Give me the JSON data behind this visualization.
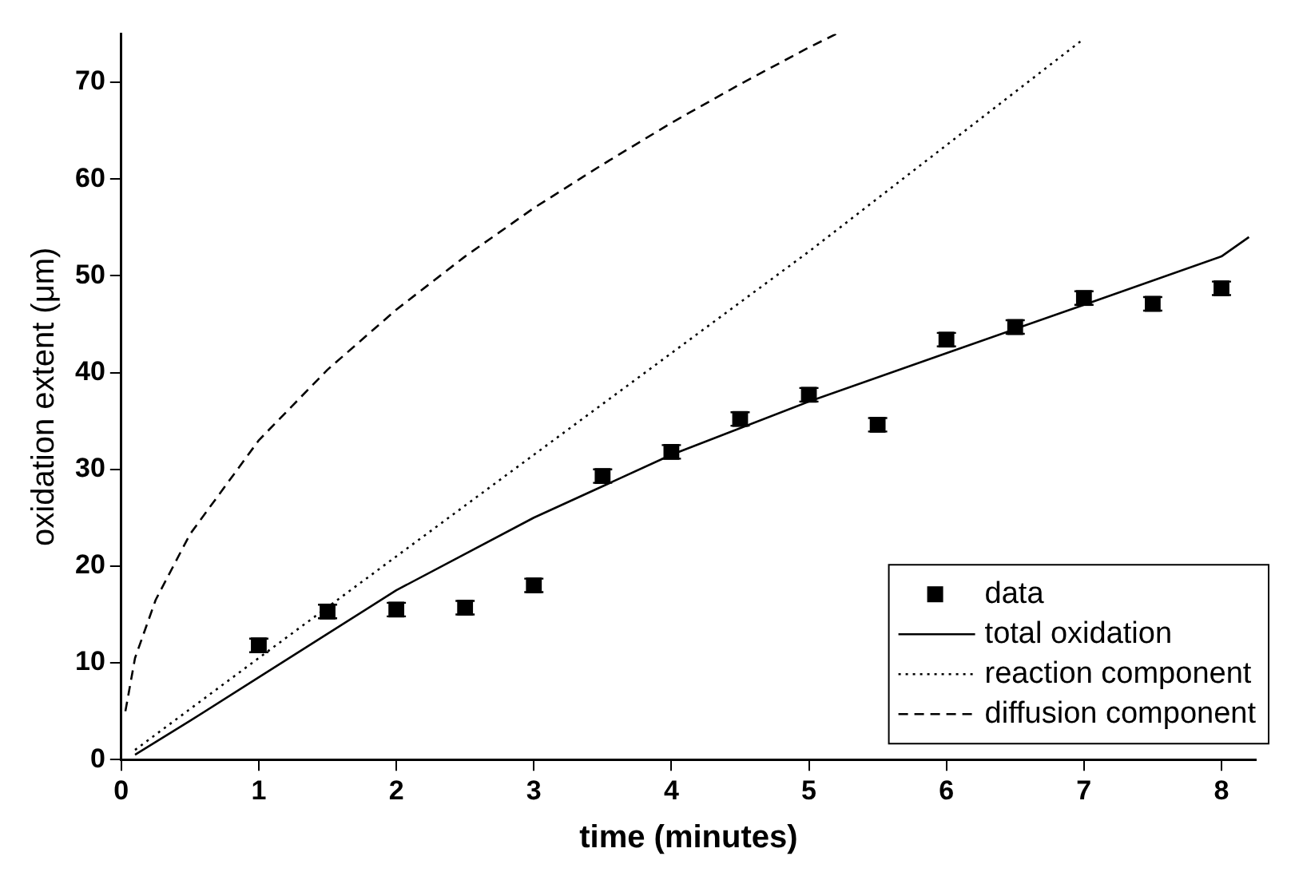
{
  "chart_data": {
    "type": "scatter",
    "xlabel": "time (minutes)",
    "ylabel": "oxidation extent (μm)",
    "xlim": [
      0,
      8.25
    ],
    "ylim": [
      0,
      75
    ],
    "xticks": [
      0,
      1,
      2,
      3,
      4,
      5,
      6,
      7,
      8
    ],
    "yticks": [
      0,
      10,
      20,
      30,
      40,
      50,
      60,
      70
    ],
    "grid": false,
    "legend": "bottom right",
    "series": [
      {
        "name": "data",
        "type": "scatter",
        "marker": "square",
        "color": "#000000",
        "x": [
          1,
          1.5,
          2,
          2.5,
          3,
          3.5,
          4,
          4.5,
          5,
          5.5,
          6,
          6.5,
          7,
          7.5,
          8
        ],
        "values": [
          11.8,
          15.3,
          15.5,
          15.7,
          18,
          29.3,
          31.8,
          35.2,
          37.7,
          34.6,
          43.4,
          44.7,
          47.7,
          47.1,
          48.7
        ],
        "errors": [
          0.7,
          0.7,
          0.7,
          0.7,
          0.7,
          0.7,
          0.7,
          0.7,
          0.7,
          0.7,
          0.7,
          0.7,
          0.7,
          0.7,
          0.7
        ]
      },
      {
        "name": "total oxidation",
        "type": "line",
        "marker": "none",
        "line_style": "solid",
        "color": "#000000",
        "x": [
          0.1,
          0.5,
          1,
          1.5,
          2,
          3,
          4,
          5,
          6,
          7,
          8,
          8.2
        ],
        "values": [
          0.5,
          4,
          8.5,
          13,
          17.5,
          25,
          31.5,
          37,
          42,
          47,
          52,
          54
        ]
      },
      {
        "name": "reaction component",
        "type": "line",
        "marker": "none",
        "line_style": "dotted",
        "color": "#000000",
        "x": [
          0.1,
          1,
          2,
          3,
          4,
          5,
          6,
          7
        ],
        "values": [
          1,
          10.5,
          21,
          31.5,
          42,
          52.5,
          63.5,
          74.5
        ]
      },
      {
        "name": "diffusion component",
        "type": "line",
        "marker": "none",
        "line_style": "dashed",
        "color": "#000000",
        "x": [
          0.03,
          0.1,
          0.25,
          0.5,
          1,
          1.5,
          2,
          2.5,
          3,
          3.5,
          4,
          4.5,
          5,
          5.2
        ],
        "values": [
          5,
          10.5,
          16.5,
          23.3,
          33,
          40.3,
          46.5,
          52,
          57,
          61.5,
          65.8,
          69.8,
          73.6,
          75
        ]
      }
    ]
  }
}
